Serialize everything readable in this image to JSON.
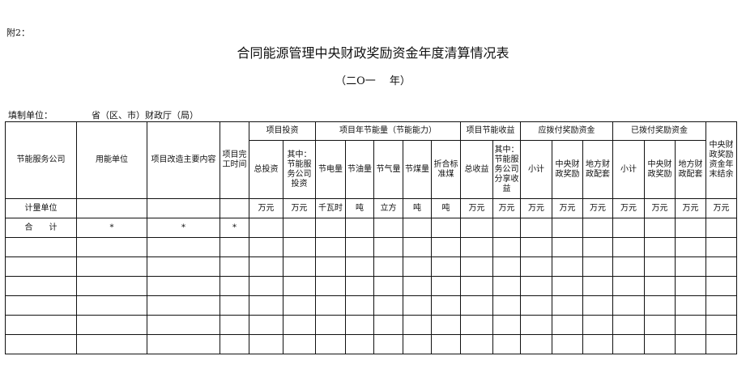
{
  "note": "附2：",
  "title": "合同能源管理中央财政奖励资金年度清算情况表",
  "year": "（二Ο一　 年）",
  "filler": {
    "label": "填制单位：",
    "value": "省（区、市）财政厅（局）"
  },
  "headers": {
    "company": "节能服务公司",
    "user": "用能单位",
    "content": "项目改造主要内容",
    "time": "项目完工时间",
    "invest": "项目投资",
    "saving": "项目年节能量（节能能力）",
    "income": "项目节能收益",
    "payable": "应拨付奖励资金",
    "paid": "已拨付奖励资金",
    "balance": "中央财政奖励资金年末结余",
    "sub": [
      "总投资",
      "其中：节能服务公司投资",
      "节电量",
      "节油量",
      "节气量",
      "节煤量",
      "折合标准煤",
      "总收益",
      "其中：节能服务公司分享收益",
      "小计",
      "中央财政奖励",
      "地方财政配套",
      "小计",
      "中央财政奖励",
      "地方财政配套"
    ]
  },
  "units_row": {
    "label": "计量单位",
    "units": [
      "万元",
      "万元",
      "千瓦时",
      "吨",
      "立方",
      "吨",
      "吨",
      "万元",
      "万元",
      "万元",
      "万元",
      "万元",
      "万元",
      "万元",
      "万元",
      "万元"
    ]
  },
  "total_row": {
    "label": "合　　计",
    "marks": [
      "*",
      "*",
      "*"
    ]
  }
}
